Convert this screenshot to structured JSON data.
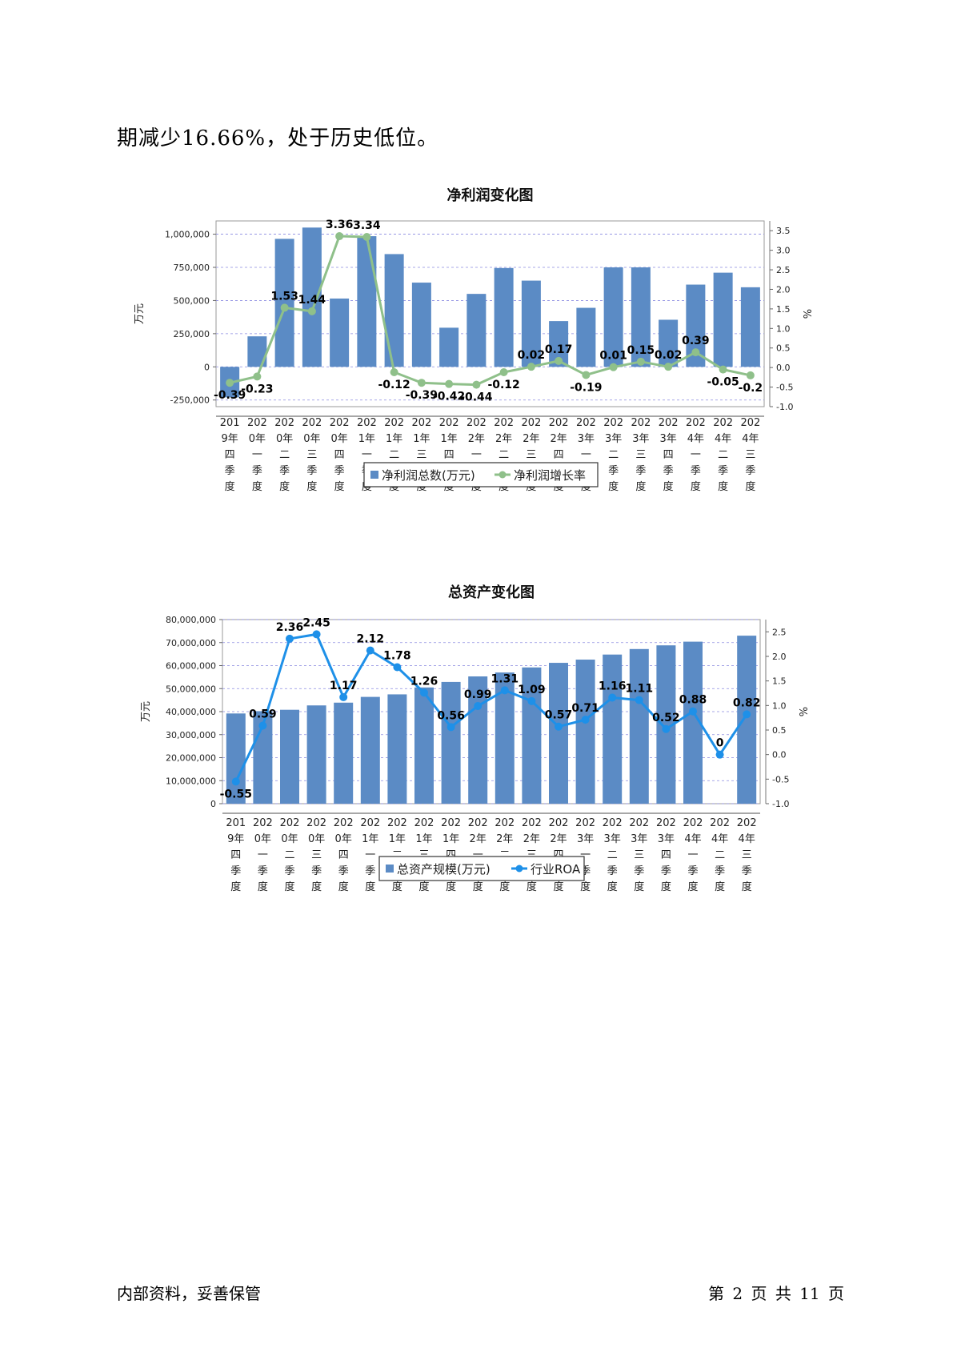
{
  "intro_text": "期减少16.66%，处于历史低位。",
  "footer": {
    "left": "内部资料，妥善保管",
    "right": "第 2 页   共 11 页"
  },
  "chart_data": [
    {
      "type": "bar",
      "title": "净利润变化图",
      "ylabel": "万元",
      "y2label": "%",
      "categories": [
        [
          "201",
          "9年",
          "四",
          "季",
          "度"
        ],
        [
          "202",
          "0年",
          "一",
          "季",
          "度"
        ],
        [
          "202",
          "0年",
          "二",
          "季",
          "度"
        ],
        [
          "202",
          "0年",
          "三",
          "季",
          "度"
        ],
        [
          "202",
          "0年",
          "四",
          "季",
          "度"
        ],
        [
          "202",
          "1年",
          "一",
          "季",
          "度"
        ],
        [
          "202",
          "1年",
          "二",
          "季",
          "度"
        ],
        [
          "202",
          "1年",
          "三",
          "季",
          "度"
        ],
        [
          "202",
          "1年",
          "四",
          "季",
          "度"
        ],
        [
          "202",
          "2年",
          "一",
          "季",
          "度"
        ],
        [
          "202",
          "2年",
          "二",
          "季",
          "度"
        ],
        [
          "202",
          "2年",
          "三",
          "季",
          "度"
        ],
        [
          "202",
          "2年",
          "四",
          "季",
          "度"
        ],
        [
          "202",
          "3年",
          "一",
          "季",
          "度"
        ],
        [
          "202",
          "3年",
          "二",
          "季",
          "度"
        ],
        [
          "202",
          "3年",
          "三",
          "季",
          "度"
        ],
        [
          "202",
          "3年",
          "四",
          "季",
          "度"
        ],
        [
          "202",
          "4年",
          "一",
          "季",
          "度"
        ],
        [
          "202",
          "4年",
          "二",
          "季",
          "度"
        ],
        [
          "202",
          "4年",
          "三",
          "季",
          "度"
        ]
      ],
      "ylim": [
        -300000,
        1100000
      ],
      "yticks": [
        -250000,
        0,
        250000,
        500000,
        750000,
        1000000
      ],
      "ytick_labels": [
        "-250,000",
        "0",
        "250,000",
        "500,000",
        "750,000",
        "1,000,000"
      ],
      "y2lim": [
        -1.0,
        3.75
      ],
      "y2ticks": [
        -1.0,
        -0.5,
        0.0,
        0.5,
        1.0,
        1.5,
        2.0,
        2.5,
        3.0,
        3.5
      ],
      "y2tick_labels": [
        "-1.0",
        "-0.5",
        "0.0",
        "0.5",
        "1.0",
        "1.5",
        "2.0",
        "2.5",
        "3.0",
        "3.5"
      ],
      "bar_series": {
        "name": "净利润总数(万元)",
        "color": "#5b8bc5",
        "values": [
          -230000,
          230000,
          965000,
          1050000,
          515000,
          985000,
          850000,
          635000,
          295000,
          550000,
          745000,
          650000,
          345000,
          445000,
          750000,
          750000,
          355000,
          620000,
          710000,
          600000
        ]
      },
      "line_series": {
        "name": "净利润增长率",
        "color": "#8fc08a",
        "values": [
          -0.39,
          -0.23,
          1.53,
          1.44,
          3.36,
          3.34,
          -0.12,
          -0.39,
          -0.42,
          -0.44,
          -0.12,
          0.02,
          0.17,
          -0.19,
          0.01,
          0.15,
          0.02,
          0.39,
          -0.05,
          -0.2
        ],
        "labels": [
          "-0.39",
          "-0.23",
          "1.53",
          "1.44",
          "3.36",
          "3.34",
          "-0.12",
          "-0.39",
          "-0.42",
          "-0.44",
          "-0.12",
          "0.02",
          "0.17",
          "-0.19",
          "0.01",
          "0.15",
          "0.02",
          "0.39",
          "-0.05",
          "-0.2"
        ]
      },
      "grid": true,
      "legend": "bottom"
    },
    {
      "type": "bar",
      "title": "总资产变化图",
      "ylabel": "万元",
      "y2label": "%",
      "categories": [
        [
          "201",
          "9年",
          "四",
          "季",
          "度"
        ],
        [
          "202",
          "0年",
          "一",
          "季",
          "度"
        ],
        [
          "202",
          "0年",
          "二",
          "季",
          "度"
        ],
        [
          "202",
          "0年",
          "三",
          "季",
          "度"
        ],
        [
          "202",
          "0年",
          "四",
          "季",
          "度"
        ],
        [
          "202",
          "1年",
          "一",
          "季",
          "度"
        ],
        [
          "202",
          "1年",
          "二",
          "季",
          "度"
        ],
        [
          "202",
          "1年",
          "三",
          "季",
          "度"
        ],
        [
          "202",
          "1年",
          "四",
          "季",
          "度"
        ],
        [
          "202",
          "2年",
          "一",
          "季",
          "度"
        ],
        [
          "202",
          "2年",
          "二",
          "季",
          "度"
        ],
        [
          "202",
          "2年",
          "三",
          "季",
          "度"
        ],
        [
          "202",
          "2年",
          "四",
          "季",
          "度"
        ],
        [
          "202",
          "3年",
          "一",
          "季",
          "度"
        ],
        [
          "202",
          "3年",
          "二",
          "季",
          "度"
        ],
        [
          "202",
          "3年",
          "三",
          "季",
          "度"
        ],
        [
          "202",
          "3年",
          "四",
          "季",
          "度"
        ],
        [
          "202",
          "4年",
          "一",
          "季",
          "度"
        ],
        [
          "202",
          "4年",
          "二",
          "季",
          "度"
        ],
        [
          "202",
          "4年",
          "三",
          "季",
          "度"
        ]
      ],
      "ylim": [
        0,
        80000000
      ],
      "yticks": [
        0,
        10000000,
        20000000,
        30000000,
        40000000,
        50000000,
        60000000,
        70000000,
        80000000
      ],
      "ytick_labels": [
        "0",
        "10,000,000",
        "20,000,000",
        "30,000,000",
        "40,000,000",
        "50,000,000",
        "60,000,000",
        "70,000,000",
        "80,000,000"
      ],
      "y2lim": [
        -1.0,
        2.75
      ],
      "y2ticks": [
        -1.0,
        -0.5,
        0.0,
        0.5,
        1.0,
        1.5,
        2.0,
        2.5
      ],
      "y2tick_labels": [
        "-1.0",
        "-0.5",
        "0.0",
        "0.5",
        "1.0",
        "1.5",
        "2.0",
        "2.5"
      ],
      "bar_series": {
        "name": "总资产规模(万元)",
        "color": "#5b8bc5",
        "values": [
          39200000,
          40200000,
          40800000,
          42700000,
          43900000,
          46400000,
          47500000,
          50500000,
          52900000,
          55300000,
          57000000,
          59200000,
          61200000,
          62600000,
          64800000,
          67200000,
          68800000,
          70400000,
          null,
          73000000
        ]
      },
      "line_series": {
        "name": "行业ROA",
        "color": "#1e90e8",
        "values": [
          -0.55,
          0.59,
          2.36,
          2.45,
          1.17,
          2.12,
          1.78,
          1.26,
          0.56,
          0.99,
          1.31,
          1.09,
          0.57,
          0.71,
          1.16,
          1.11,
          0.52,
          0.88,
          0,
          0.82
        ],
        "labels": [
          "-0.55",
          "0.59",
          "2.36",
          "2.45",
          "1.17",
          "2.12",
          "1.78",
          "1.26",
          "0.56",
          "0.99",
          "1.31",
          "1.09",
          "0.57",
          "0.71",
          "1.16",
          "1.11",
          "0.52",
          "0.88",
          "0",
          "0.82"
        ]
      },
      "grid": true,
      "legend": "bottom"
    }
  ]
}
